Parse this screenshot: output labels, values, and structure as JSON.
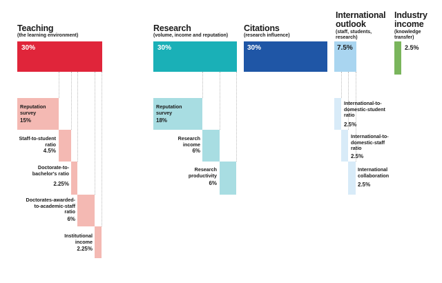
{
  "teaching": {
    "title": "Teaching",
    "subtitle": "(the learning environment)",
    "weight": "30%",
    "sub_items": [
      {
        "label": "Reputation survey",
        "weight": "15%"
      },
      {
        "label": "Staff-to-student ratio",
        "weight": "4.5%"
      },
      {
        "label": "Doctorate-to-bachelor's ratio",
        "weight": "2.25%"
      },
      {
        "label": "Doctorates-awarded-to-academic-staff ratio",
        "weight": "6%"
      },
      {
        "label": "Institutional income",
        "weight": "2.25%"
      }
    ]
  },
  "research": {
    "title": "Research",
    "subtitle": "(volume, income and reputation)",
    "weight": "30%",
    "sub_items": [
      {
        "label": "Reputation survey",
        "weight": "18%"
      },
      {
        "label": "Research income",
        "weight": "6%"
      },
      {
        "label": "Research productivity",
        "weight": "6%"
      }
    ]
  },
  "citations": {
    "title": "Citations",
    "subtitle": "(research influence)",
    "weight": "30%"
  },
  "international": {
    "title": "International outlook",
    "subtitle": "(staff, students, research)",
    "weight": "7.5%",
    "sub_items": [
      {
        "label": "International-to-domestic-student ratio",
        "weight": "2.5%"
      },
      {
        "label": "International-to-domestic-staff ratio",
        "weight": "2.5%"
      },
      {
        "label": "International collaboration",
        "weight": "2.5%"
      }
    ]
  },
  "industry": {
    "title": "Industry income",
    "subtitle": "(knowledge transfer)",
    "weight": "2.5%"
  },
  "colors": {
    "teaching": "#e0253a",
    "teaching_light": "#f4b9b3",
    "research": "#1ab0b7",
    "research_light": "#a8dde2",
    "citations": "#1f56a6",
    "international": "#a9d5f0",
    "international_light": "#d8ebf8",
    "industry": "#7ab55c"
  }
}
